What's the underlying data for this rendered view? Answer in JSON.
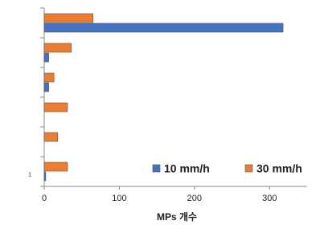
{
  "chart_data": {
    "type": "bar",
    "orientation": "horizontal",
    "x_label": "MPs 개수",
    "categories": [
      null,
      null,
      null,
      null,
      null,
      "1"
    ],
    "series": [
      {
        "name": "30 mm/h",
        "color": "#ed7d31",
        "values": [
          65,
          36,
          13,
          31,
          18,
          31
        ]
      },
      {
        "name": "10 mm/h",
        "color": "#4472c4",
        "values": [
          318,
          6,
          6,
          0,
          0,
          2
        ]
      }
    ],
    "xlim": [
      0,
      350
    ],
    "xticks": [
      0,
      100,
      200,
      300
    ],
    "legend": "lower right"
  }
}
